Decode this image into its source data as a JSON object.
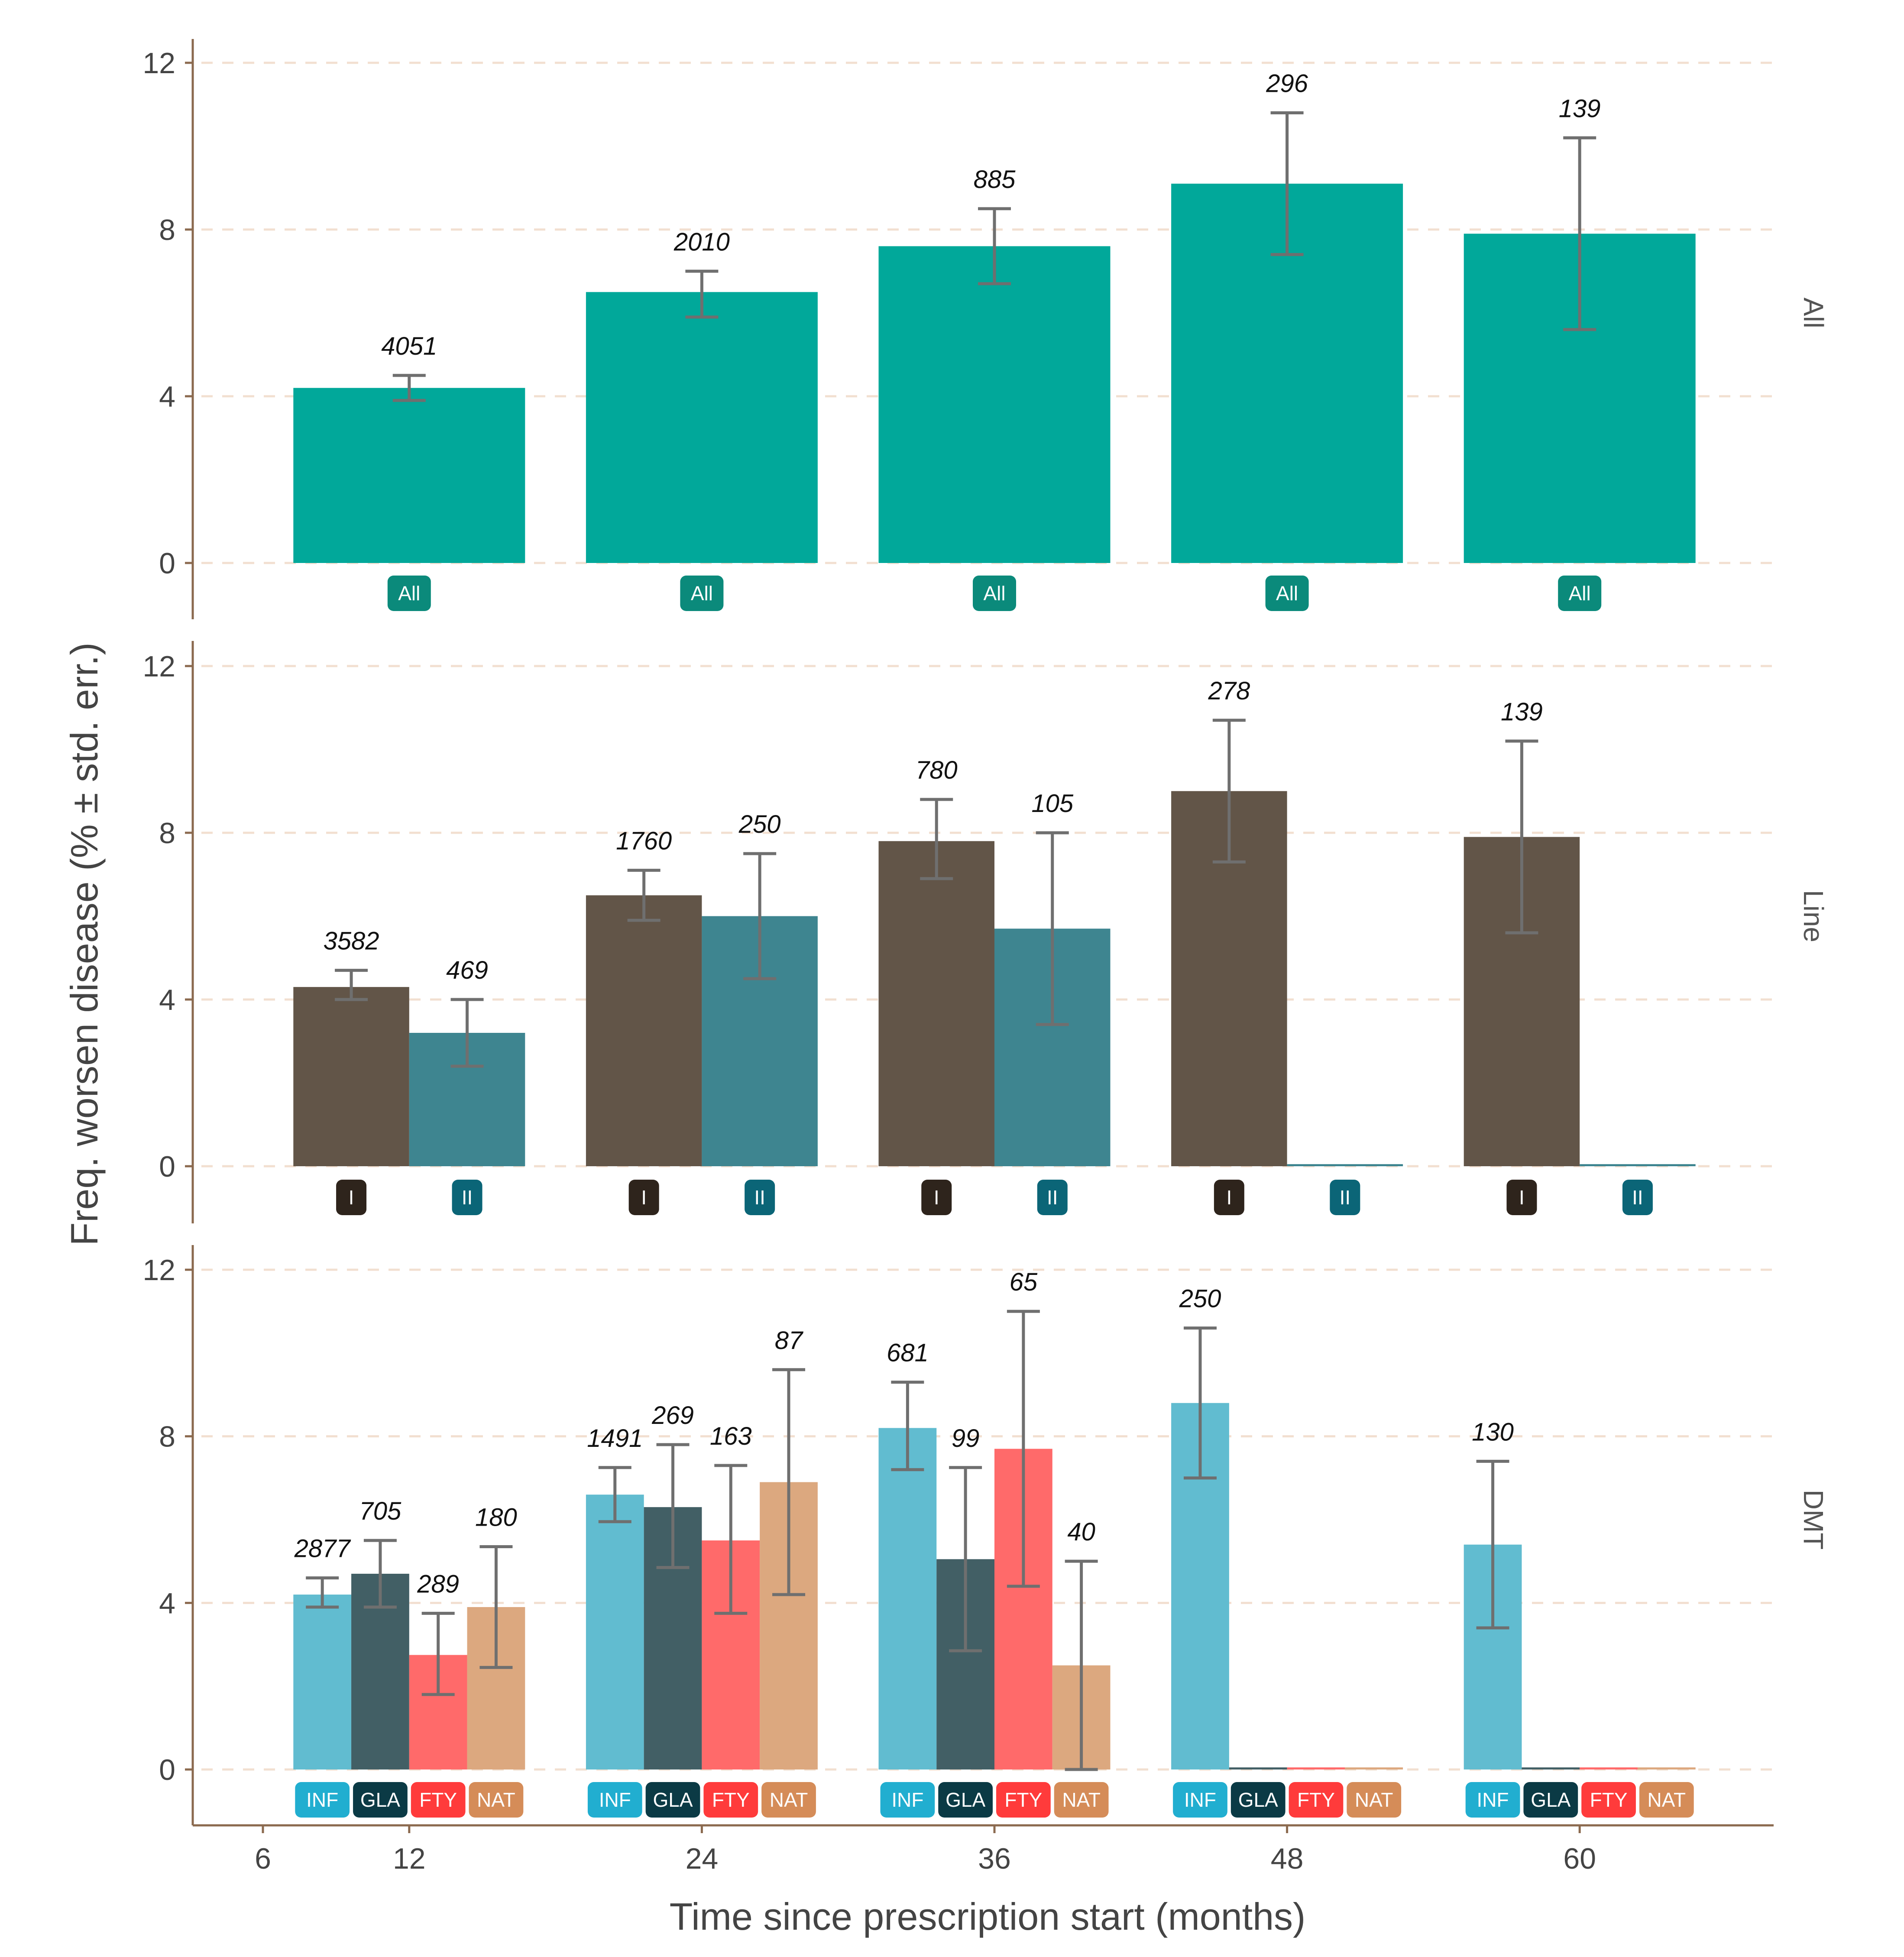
{
  "chart_data": {
    "type": "bar",
    "ylabel": "Freq. worsen disease (% ± std. err.)",
    "xlabel": "Time since prescription start (months)",
    "x_ticks": [
      "6",
      "12",
      "24",
      "36",
      "48",
      "60"
    ],
    "x_tick_values": [
      6,
      12,
      24,
      36,
      48,
      60
    ],
    "y_ticks": [
      "0",
      "4",
      "8",
      "12"
    ],
    "y_tick_values": [
      0,
      4,
      8,
      12
    ],
    "ylim": [
      0,
      12
    ],
    "grid": "horizontal dashed",
    "colors": {
      "All": "#01A89A",
      "I": "#625548",
      "II": "#3E8590",
      "INF": "#61BCD0",
      "GLA": "#425F65",
      "FTY": "#FF6A6A",
      "NAT": "#DCA87F",
      "axis": "#8B6A4F",
      "grid": "#F2DFD0",
      "errorbar": "#6F6F6F"
    },
    "badge_colors": {
      "All": "#0B8A7B",
      "I": "#2E241C",
      "II": "#0B6577",
      "INF": "#21AED0",
      "GLA": "#0B3A45",
      "FTY": "#FF3B3B",
      "NAT": "#D58C58"
    },
    "panels": [
      {
        "strip": "All",
        "groups": [
          "All"
        ],
        "timepoints": [
          {
            "x": 12,
            "bars": [
              {
                "group": "All",
                "value": 4.2,
                "err_low": 3.9,
                "err_high": 4.5,
                "n": "4051"
              }
            ]
          },
          {
            "x": 24,
            "bars": [
              {
                "group": "All",
                "value": 6.5,
                "err_low": 5.9,
                "err_high": 7.0,
                "n": "2010"
              }
            ]
          },
          {
            "x": 36,
            "bars": [
              {
                "group": "All",
                "value": 7.6,
                "err_low": 6.7,
                "err_high": 8.5,
                "n": "885"
              }
            ]
          },
          {
            "x": 48,
            "bars": [
              {
                "group": "All",
                "value": 9.1,
                "err_low": 7.4,
                "err_high": 10.8,
                "n": "296"
              }
            ]
          },
          {
            "x": 60,
            "bars": [
              {
                "group": "All",
                "value": 7.9,
                "err_low": 5.6,
                "err_high": 10.2,
                "n": "139"
              }
            ]
          }
        ]
      },
      {
        "strip": "Line",
        "groups": [
          "I",
          "II"
        ],
        "timepoints": [
          {
            "x": 12,
            "bars": [
              {
                "group": "I",
                "value": 4.3,
                "err_low": 4.0,
                "err_high": 4.7,
                "n": "3582"
              },
              {
                "group": "II",
                "value": 3.2,
                "err_low": 2.4,
                "err_high": 4.0,
                "n": "469"
              }
            ]
          },
          {
            "x": 24,
            "bars": [
              {
                "group": "I",
                "value": 6.5,
                "err_low": 5.9,
                "err_high": 7.1,
                "n": "1760"
              },
              {
                "group": "II",
                "value": 6.0,
                "err_low": 4.5,
                "err_high": 7.5,
                "n": "250"
              }
            ]
          },
          {
            "x": 36,
            "bars": [
              {
                "group": "I",
                "value": 7.8,
                "err_low": 6.9,
                "err_high": 8.8,
                "n": "780"
              },
              {
                "group": "II",
                "value": 5.7,
                "err_low": 3.4,
                "err_high": 8.0,
                "n": "105"
              }
            ]
          },
          {
            "x": 48,
            "bars": [
              {
                "group": "I",
                "value": 9.0,
                "err_low": 7.3,
                "err_high": 10.7,
                "n": "278"
              },
              {
                "group": "II",
                "value": 0.05,
                "err_low": null,
                "err_high": null,
                "n": ""
              }
            ]
          },
          {
            "x": 60,
            "bars": [
              {
                "group": "I",
                "value": 7.9,
                "err_low": 5.6,
                "err_high": 10.2,
                "n": "139"
              },
              {
                "group": "II",
                "value": 0.05,
                "err_low": null,
                "err_high": null,
                "n": ""
              }
            ]
          }
        ]
      },
      {
        "strip": "DMT",
        "groups": [
          "INF",
          "GLA",
          "FTY",
          "NAT"
        ],
        "timepoints": [
          {
            "x": 12,
            "bars": [
              {
                "group": "INF",
                "value": 4.2,
                "err_low": 3.9,
                "err_high": 4.6,
                "n": "2877"
              },
              {
                "group": "GLA",
                "value": 4.7,
                "err_low": 3.9,
                "err_high": 5.5,
                "n": "705"
              },
              {
                "group": "FTY",
                "value": 2.75,
                "err_low": 1.8,
                "err_high": 3.75,
                "n": "289"
              },
              {
                "group": "NAT",
                "value": 3.9,
                "err_low": 2.45,
                "err_high": 5.35,
                "n": "180"
              }
            ]
          },
          {
            "x": 24,
            "bars": [
              {
                "group": "INF",
                "value": 6.6,
                "err_low": 5.95,
                "err_high": 7.25,
                "n": "1491"
              },
              {
                "group": "GLA",
                "value": 6.3,
                "err_low": 4.85,
                "err_high": 7.8,
                "n": "269"
              },
              {
                "group": "FTY",
                "value": 5.5,
                "err_low": 3.75,
                "err_high": 7.3,
                "n": "163"
              },
              {
                "group": "NAT",
                "value": 6.9,
                "err_low": 4.2,
                "err_high": 9.6,
                "n": "87"
              }
            ]
          },
          {
            "x": 36,
            "bars": [
              {
                "group": "INF",
                "value": 8.2,
                "err_low": 7.2,
                "err_high": 9.3,
                "n": "681"
              },
              {
                "group": "GLA",
                "value": 5.05,
                "err_low": 2.85,
                "err_high": 7.25,
                "n": "99"
              },
              {
                "group": "FTY",
                "value": 7.7,
                "err_low": 4.4,
                "err_high": 11.0,
                "n": "65"
              },
              {
                "group": "NAT",
                "value": 2.5,
                "err_low": 0.0,
                "err_high": 5.0,
                "n": "40"
              }
            ]
          },
          {
            "x": 48,
            "bars": [
              {
                "group": "INF",
                "value": 8.8,
                "err_low": 7.0,
                "err_high": 10.6,
                "n": "250"
              },
              {
                "group": "GLA",
                "value": 0.05,
                "err_low": null,
                "err_high": null,
                "n": ""
              },
              {
                "group": "FTY",
                "value": 0.05,
                "err_low": null,
                "err_high": null,
                "n": ""
              },
              {
                "group": "NAT",
                "value": 0.05,
                "err_low": null,
                "err_high": null,
                "n": ""
              }
            ]
          },
          {
            "x": 60,
            "bars": [
              {
                "group": "INF",
                "value": 5.4,
                "err_low": 3.4,
                "err_high": 7.4,
                "n": "130"
              },
              {
                "group": "GLA",
                "value": 0.05,
                "err_low": null,
                "err_high": null,
                "n": ""
              },
              {
                "group": "FTY",
                "value": 0.05,
                "err_low": null,
                "err_high": null,
                "n": ""
              },
              {
                "group": "NAT",
                "value": 0.05,
                "err_low": null,
                "err_high": null,
                "n": ""
              }
            ]
          }
        ]
      }
    ]
  }
}
